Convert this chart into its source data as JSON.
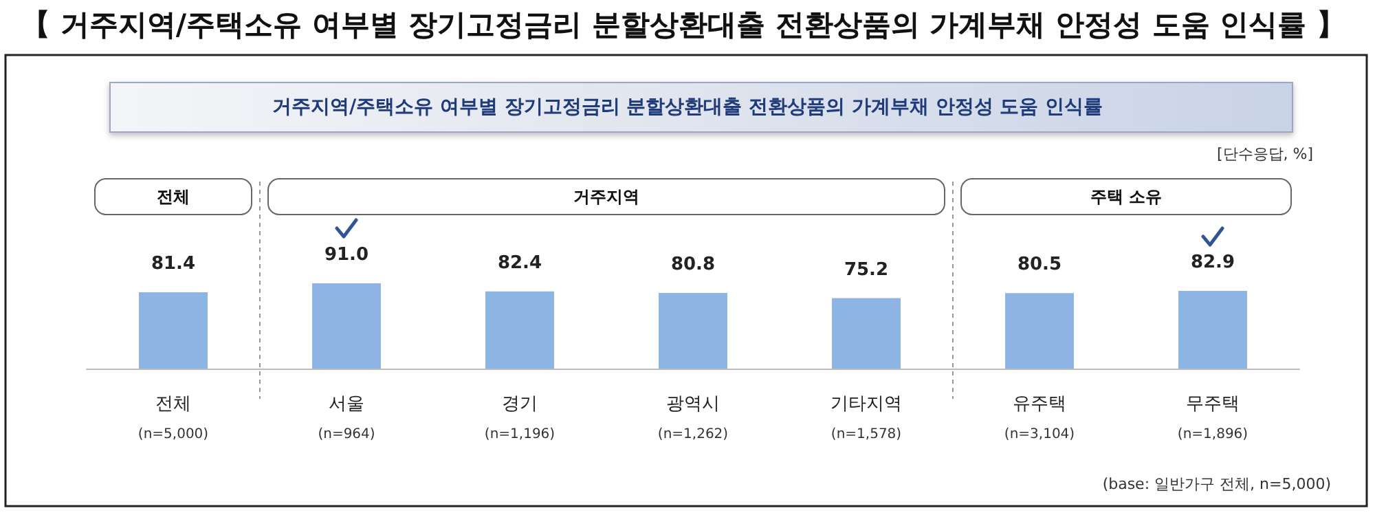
{
  "chart_data": {
    "type": "bar",
    "title": "【 거주지역/주택소유 여부별 장기고정금리 분할상환대출 전환상품의 가계부채 안정성 도움 인식률 】",
    "subtitle": "거주지역/주택소유 여부별 장기고정금리 분할상환대출 전환상품의 가계부채 안정성 도움 인식률",
    "categories": [
      "전체\n(n=5,000)",
      "서울\n(n=964)",
      "경기\n(n=1,196)",
      "광역시\n(n=1,262)",
      "기타지역\n(n=1,578)",
      "유주택\n(n=3,104)",
      "무주택\n(n=1,896)"
    ],
    "values": [
      81.4,
      91.0,
      82.4,
      80.8,
      75.2,
      80.5,
      82.9
    ],
    "value_labels": [
      "81.4",
      "91.0",
      "82.4",
      "80.8",
      "75.2",
      "80.5",
      "82.9"
    ],
    "color": "#8db4e2",
    "annotations": [
      "[단수응답, %]",
      "전체",
      "거주지역",
      "주택 소유",
      "(base: 일반가구 전체, n=5,000)"
    ]
  }
}
